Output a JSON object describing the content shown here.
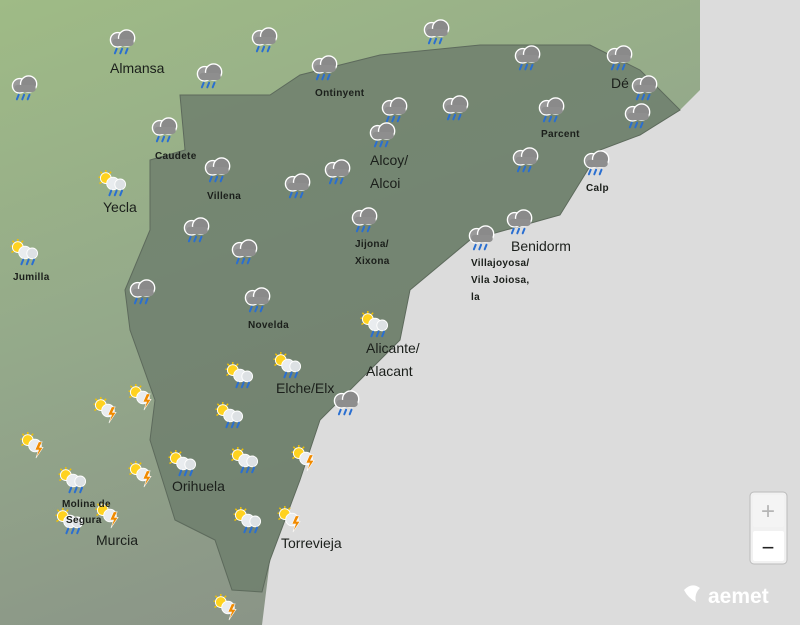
{
  "places": [
    [
      "Almansa"
    ],
    [
      "Ontinyent"
    ],
    [
      "Caudete"
    ],
    [
      "Villena"
    ],
    [
      "Yecla"
    ],
    [
      "Alcoy/",
      "Alcoi"
    ],
    [
      "Parcent"
    ],
    [
      "Calp"
    ],
    [
      "Dé"
    ],
    [
      "Jijona/",
      "Xixona"
    ],
    [
      "Benidorm"
    ],
    [
      "Villajoyosa/",
      "Vila Joiosa,",
      "la"
    ],
    [
      "Jumilla"
    ],
    [
      "Novelda"
    ],
    [
      "Alicante/",
      "Alacant"
    ],
    [
      "Elche/Elx"
    ],
    [
      "Orihuela"
    ],
    [
      "Molina de",
      "Segura"
    ],
    [
      "Murcia"
    ],
    [
      "Torrevieja"
    ]
  ],
  "zoom": [
    "+",
    "−"
  ],
  "brand": "aemet"
}
